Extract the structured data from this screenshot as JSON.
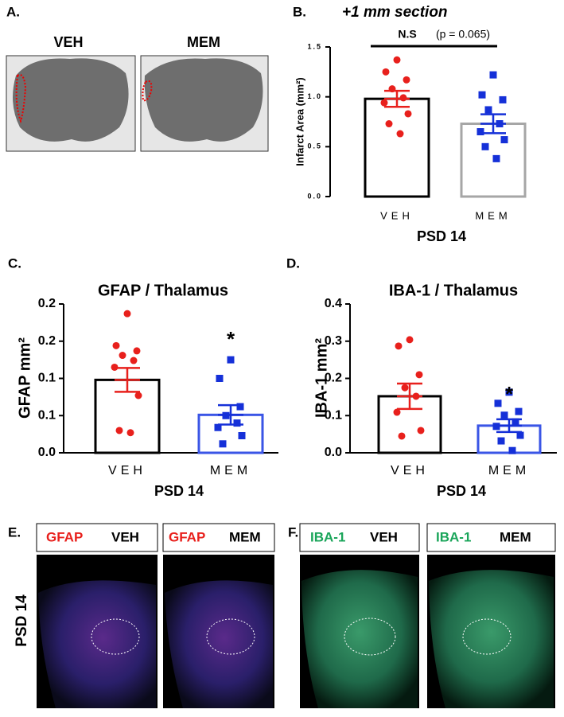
{
  "chart_data": [
    {
      "type": "bar",
      "label": "B.",
      "title": "+1 mm section",
      "y_label": "Infarct Area (mm²)",
      "x_label": "PSD 14",
      "categories": [
        "VEH",
        "MEM"
      ],
      "values": [
        0.98,
        0.73
      ],
      "errors": [
        0.08,
        0.095
      ],
      "points": [
        [
          1.37,
          1.25,
          1.17,
          1.08,
          0.99,
          0.94,
          0.83,
          0.73,
          0.63
        ],
        [
          1.22,
          1.02,
          0.97,
          0.87,
          0.73,
          0.65,
          0.57,
          0.5,
          0.38
        ]
      ],
      "bar_colors": [
        "#000000",
        "#a6a6a6"
      ],
      "point_colors": [
        "#e8201c",
        "#1530d8"
      ],
      "markers": [
        "circle",
        "square"
      ],
      "annotation_label": "N.S",
      "annotation_text": "(p = 0.065)",
      "ylim": [
        0,
        1.5
      ],
      "yticks": [
        {
          "value": 0,
          "label": "0.0"
        },
        0.5,
        {
          "value": 1,
          "label": "1.0"
        },
        1.5
      ]
    },
    {
      "type": "bar",
      "label": "C.",
      "title": "GFAP / Thalamus",
      "y_label": "GFAP mm²",
      "x_label": "PSD 14",
      "categories": [
        "VEH",
        "MEM"
      ],
      "values": [
        0.098,
        0.051
      ],
      "errors": [
        0.016,
        0.013
      ],
      "points": [
        [
          0.187,
          0.144,
          0.137,
          0.131,
          0.124,
          0.115,
          0.077,
          0.03,
          0.027
        ],
        [
          0.125,
          0.1,
          0.062,
          0.05,
          0.04,
          0.034,
          0.023,
          0.012
        ]
      ],
      "bar_colors": [
        "#000000",
        "#3a55e6"
      ],
      "point_colors": [
        "#e8201c",
        "#1530d8"
      ],
      "markers": [
        "circle",
        "square"
      ],
      "significance": "*",
      "ylim": [
        0,
        0.2
      ],
      "yticks": [
        {
          "value": 0,
          "label": "0.0"
        },
        {
          "value": 0.05,
          "label": "0.1"
        },
        0.1,
        {
          "value": 0.15,
          "label": "0.2"
        },
        0.2
      ]
    },
    {
      "type": "bar",
      "label": "D.",
      "title": "IBA-1 / Thalamus",
      "y_label": "IBA-1 mm²",
      "x_label": "PSD 14",
      "categories": [
        "VEH",
        "MEM"
      ],
      "values": [
        0.152,
        0.073
      ],
      "errors": [
        0.034,
        0.017
      ],
      "points": [
        [
          0.304,
          0.287,
          0.21,
          0.175,
          0.152,
          0.109,
          0.06,
          0.045
        ],
        [
          0.163,
          0.133,
          0.111,
          0.101,
          0.083,
          0.071,
          0.047,
          0.032,
          0.006
        ]
      ],
      "bar_colors": [
        "#000000",
        "#3a55e6"
      ],
      "point_colors": [
        "#e8201c",
        "#1530d8"
      ],
      "markers": [
        "circle",
        "square"
      ],
      "significance": "*",
      "ylim": [
        0,
        0.4
      ],
      "yticks": [
        {
          "value": 0,
          "label": "0.0"
        },
        0.1,
        0.2,
        0.3,
        0.4
      ]
    }
  ],
  "panel_a": {
    "label": "A.",
    "images": [
      "VEH",
      "MEM"
    ]
  },
  "panel_e": {
    "label": "E.",
    "row_label": "PSD 14",
    "images": [
      {
        "stain": "GFAP",
        "group": "VEH"
      },
      {
        "stain": "GFAP",
        "group": "MEM"
      }
    ]
  },
  "panel_f": {
    "label": "F.",
    "images": [
      {
        "stain": "IBA-1",
        "group": "VEH"
      },
      {
        "stain": "IBA-1",
        "group": "MEM"
      }
    ]
  }
}
